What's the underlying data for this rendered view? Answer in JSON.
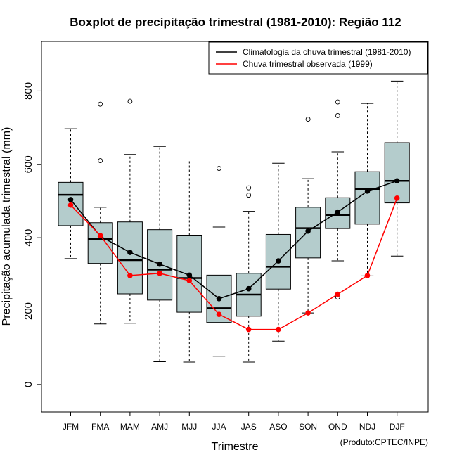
{
  "chart_data": {
    "type": "boxplot",
    "title": "Boxplot de precipitação trimestral (1981-2010): Região 112",
    "xlabel": "Trimestre",
    "ylabel": "Precipitação acumulada trimestral (mm)",
    "ylim": [
      -75,
      935
    ],
    "yticks": [
      0,
      200,
      400,
      600,
      800
    ],
    "credit": "(Produto:CPTEC/INPE)",
    "categories": [
      "JFM",
      "FMA",
      "MAM",
      "AMJ",
      "MJJ",
      "JJA",
      "JAS",
      "ASO",
      "SON",
      "OND",
      "NDJ",
      "DJF"
    ],
    "boxes": [
      {
        "whisker_low": 343,
        "q1": 433,
        "median": 517,
        "q3": 551,
        "whisker_high": 697,
        "outliers": []
      },
      {
        "whisker_low": 165,
        "q1": 330,
        "median": 396,
        "q3": 441,
        "whisker_high": 483,
        "outliers": [
          764,
          610
        ]
      },
      {
        "whisker_low": 167,
        "q1": 247,
        "median": 339,
        "q3": 443,
        "whisker_high": 627,
        "outliers": [
          772
        ]
      },
      {
        "whisker_low": 62,
        "q1": 230,
        "median": 313,
        "q3": 422,
        "whisker_high": 649,
        "outliers": []
      },
      {
        "whisker_low": 61,
        "q1": 197,
        "median": 290,
        "q3": 407,
        "whisker_high": 612,
        "outliers": []
      },
      {
        "whisker_low": 77,
        "q1": 169,
        "median": 208,
        "q3": 298,
        "whisker_high": 429,
        "outliers": [
          589
        ]
      },
      {
        "whisker_low": 61,
        "q1": 186,
        "median": 245,
        "q3": 303,
        "whisker_high": 472,
        "outliers": [
          536,
          516
        ]
      },
      {
        "whisker_low": 118,
        "q1": 260,
        "median": 321,
        "q3": 409,
        "whisker_high": 603,
        "outliers": []
      },
      {
        "whisker_low": 195,
        "q1": 345,
        "median": 426,
        "q3": 483,
        "whisker_high": 561,
        "outliers": [
          723
        ]
      },
      {
        "whisker_low": 337,
        "q1": 425,
        "median": 462,
        "q3": 509,
        "whisker_high": 634,
        "outliers": [
          770,
          733,
          238
        ]
      },
      {
        "whisker_low": 296,
        "q1": 437,
        "median": 533,
        "q3": 580,
        "whisker_high": 766,
        "outliers": []
      },
      {
        "whisker_low": 350,
        "q1": 495,
        "median": 555,
        "q3": 659,
        "whisker_high": 827,
        "outliers": []
      }
    ],
    "series": [
      {
        "name": "Climatologia da chuva trimestral (1981-2010)",
        "color": "#000000",
        "values": [
          504,
          404,
          360,
          328,
          298,
          234,
          261,
          337,
          418,
          470,
          527,
          555
        ]
      },
      {
        "name": "Chuva trimestral observada (1999)",
        "color": "#ff0000",
        "values": [
          489,
          406,
          297,
          303,
          283,
          191,
          150,
          150,
          195,
          246,
          297,
          508
        ]
      }
    ],
    "box_fill": "#b4cccc",
    "legend_position": "top-right"
  }
}
